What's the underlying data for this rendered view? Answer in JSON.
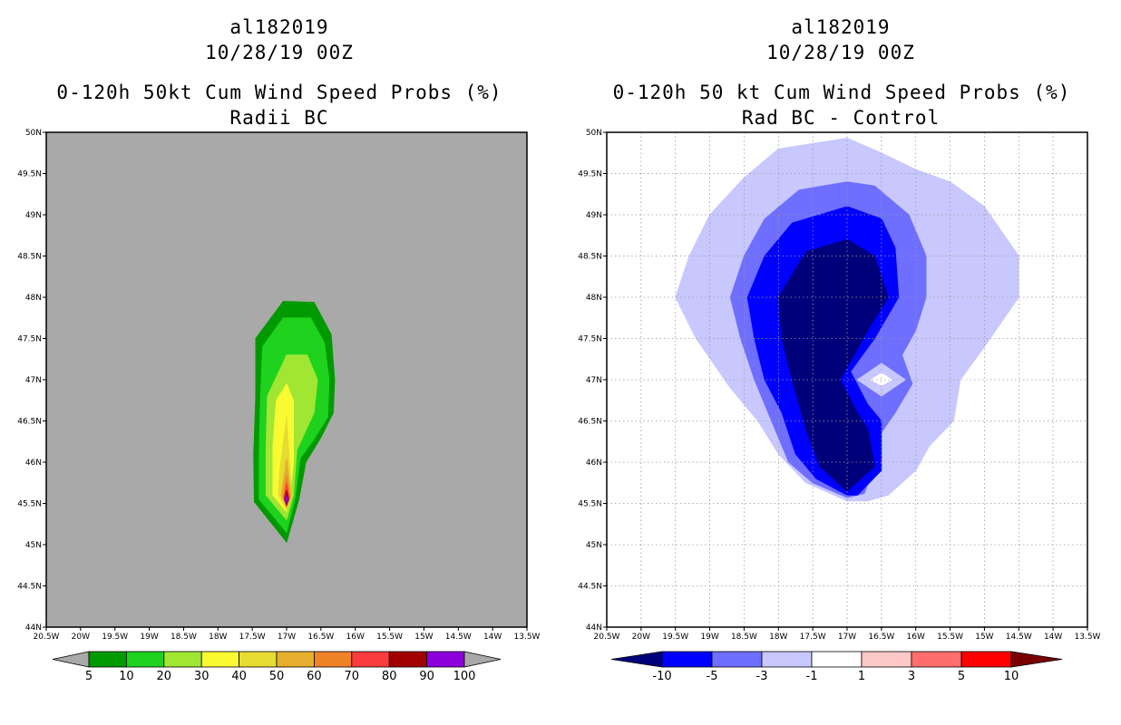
{
  "chart_data": [
    {
      "type": "filled-contour",
      "title": [
        "al182019",
        "10/28/19 00Z",
        "0-120h 50kt Cum Wind Speed Probs (%)",
        "Radii BC"
      ],
      "background_color": "#a9a9a9",
      "xlim": [
        -20.5,
        -13.5
      ],
      "ylim": [
        44,
        50
      ],
      "x_tick_labels": [
        "20.5W",
        "20W",
        "19.5W",
        "19W",
        "18.5W",
        "18W",
        "17.5W",
        "17W",
        "16.5W",
        "16W",
        "15.5W",
        "15W",
        "14.5W",
        "14W",
        "13.5W"
      ],
      "y_tick_labels": [
        "44N",
        "44.5N",
        "45N",
        "45.5N",
        "46N",
        "46.5N",
        "47N",
        "47.5N",
        "48N",
        "48.5N",
        "49N",
        "49.5N",
        "50N"
      ],
      "grid": false,
      "colorbar": {
        "levels": [
          "5",
          "10",
          "20",
          "30",
          "40",
          "50",
          "60",
          "70",
          "80",
          "90",
          "100"
        ],
        "colors": [
          "#009a00",
          "#1ed21e",
          "#a0e632",
          "#fafa32",
          "#e6dc32",
          "#e6af2d",
          "#f08228",
          "#fa3c3c",
          "#a00000",
          "#8c00dc"
        ],
        "arrow_color": "#a9a9a9"
      },
      "contours": [
        {
          "level": 5,
          "color": "#009a00",
          "points": [
            [
              -17.05,
              47.95
            ],
            [
              -16.6,
              47.94
            ],
            [
              -16.35,
              47.55
            ],
            [
              -16.3,
              47.0
            ],
            [
              -16.32,
              46.6
            ],
            [
              -16.5,
              46.3
            ],
            [
              -16.72,
              46.0
            ],
            [
              -16.82,
              45.55
            ],
            [
              -17.0,
              45.03
            ],
            [
              -17.47,
              45.52
            ],
            [
              -17.48,
              46.1
            ],
            [
              -17.45,
              46.8
            ],
            [
              -17.45,
              47.5
            ]
          ]
        },
        {
          "level": 10,
          "color": "#1ed21e",
          "points": [
            [
              -17.05,
              47.75
            ],
            [
              -16.65,
              47.75
            ],
            [
              -16.45,
              47.45
            ],
            [
              -16.38,
              47.0
            ],
            [
              -16.4,
              46.55
            ],
            [
              -16.6,
              46.28
            ],
            [
              -16.8,
              46.05
            ],
            [
              -16.88,
              45.55
            ],
            [
              -17.0,
              45.15
            ],
            [
              -17.4,
              45.55
            ],
            [
              -17.4,
              46.1
            ],
            [
              -17.38,
              46.8
            ],
            [
              -17.35,
              47.4
            ]
          ]
        },
        {
          "level": 20,
          "color": "#a0e632",
          "points": [
            [
              -17.0,
              47.3
            ],
            [
              -16.7,
              47.3
            ],
            [
              -16.55,
              47.0
            ],
            [
              -16.6,
              46.6
            ],
            [
              -16.85,
              46.15
            ],
            [
              -16.9,
              45.6
            ],
            [
              -17.0,
              45.3
            ],
            [
              -17.3,
              45.6
            ],
            [
              -17.3,
              46.2
            ],
            [
              -17.28,
              46.8
            ]
          ]
        },
        {
          "level": 30,
          "color": "#fafa32",
          "points": [
            [
              -17.0,
              46.95
            ],
            [
              -16.9,
              46.75
            ],
            [
              -16.9,
              46.0
            ],
            [
              -16.95,
              45.6
            ],
            [
              -17.0,
              45.4
            ],
            [
              -17.2,
              45.6
            ],
            [
              -17.2,
              46.2
            ],
            [
              -17.15,
              46.75
            ]
          ]
        },
        {
          "level": 40,
          "color": "#e6dc32",
          "points": [
            [
              -17.0,
              46.55
            ],
            [
              -16.95,
              45.9
            ],
            [
              -16.92,
              45.6
            ],
            [
              -17.0,
              45.42
            ],
            [
              -17.12,
              45.6
            ],
            [
              -17.1,
              45.9
            ]
          ]
        },
        {
          "level": 50,
          "color": "#e6af2d",
          "points": [
            [
              -17.0,
              46.05
            ],
            [
              -16.93,
              45.6
            ],
            [
              -17.0,
              45.45
            ],
            [
              -17.08,
              45.6
            ]
          ]
        },
        {
          "level": 60,
          "color": "#f08228",
          "points": [
            [
              -17.0,
              45.85
            ],
            [
              -16.95,
              45.58
            ],
            [
              -17.0,
              45.46
            ],
            [
              -17.05,
              45.58
            ]
          ]
        },
        {
          "level": 70,
          "color": "#fa3c3c",
          "points": [
            [
              -17.0,
              45.74
            ],
            [
              -16.96,
              45.56
            ],
            [
              -17.0,
              45.47
            ],
            [
              -17.04,
              45.56
            ]
          ]
        },
        {
          "level": 80,
          "color": "#a00000",
          "points": [
            [
              -17.0,
              45.66
            ],
            [
              -16.97,
              45.55
            ],
            [
              -17.0,
              45.48
            ],
            [
              -17.03,
              45.55
            ]
          ]
        },
        {
          "level": 90,
          "color": "#8c00dc",
          "points": [
            [
              -17.0,
              45.6
            ],
            [
              -16.98,
              45.55
            ],
            [
              -17.0,
              45.5
            ],
            [
              -17.02,
              45.55
            ]
          ]
        }
      ]
    },
    {
      "type": "filled-contour",
      "title": [
        "al182019",
        "10/28/19 00Z",
        "0-120h 50 kt Cum Wind Speed Probs (%)",
        "Rad BC - Control"
      ],
      "background_color": "#ffffff",
      "xlim": [
        -20.5,
        -13.5
      ],
      "ylim": [
        44,
        50
      ],
      "x_tick_labels": [
        "20.5W",
        "20W",
        "19.5W",
        "19W",
        "18.5W",
        "18W",
        "17.5W",
        "17W",
        "16.5W",
        "16W",
        "15.5W",
        "15W",
        "14.5W",
        "14W",
        "13.5W"
      ],
      "y_tick_labels": [
        "44N",
        "44.5N",
        "45N",
        "45.5N",
        "46N",
        "46.5N",
        "47N",
        "47.5N",
        "48N",
        "48.5N",
        "49N",
        "49.5N",
        "50N"
      ],
      "grid": true,
      "colorbar": {
        "levels": [
          "-10",
          "-5",
          "-3",
          "-1",
          "1",
          "3",
          "5",
          "10"
        ],
        "colors": [
          "#0000ff",
          "#6e6eff",
          "#c8c8ff",
          "#ffffff",
          "#ffc8c8",
          "#ff6e6e",
          "#ff0000"
        ],
        "arrow_colors": [
          "#00007a",
          "#7a0000"
        ]
      },
      "contours": [
        {
          "level": -1,
          "color": "#c8c8ff",
          "points": [
            [
              -17.0,
              49.93
            ],
            [
              -16.5,
              49.75
            ],
            [
              -16.0,
              49.55
            ],
            [
              -15.5,
              49.4
            ],
            [
              -15.0,
              49.1
            ],
            [
              -14.5,
              48.5
            ],
            [
              -14.5,
              48.0
            ],
            [
              -15.0,
              47.4
            ],
            [
              -15.35,
              47.0
            ],
            [
              -15.45,
              46.5
            ],
            [
              -15.8,
              46.2
            ],
            [
              -16.0,
              45.9
            ],
            [
              -16.4,
              45.6
            ],
            [
              -16.7,
              45.53
            ],
            [
              -17.0,
              45.53
            ],
            [
              -17.6,
              45.75
            ],
            [
              -18.0,
              46.1
            ],
            [
              -18.3,
              46.5
            ],
            [
              -18.7,
              46.9
            ],
            [
              -19.2,
              47.5
            ],
            [
              -19.5,
              48.0
            ],
            [
              -19.3,
              48.5
            ],
            [
              -19.0,
              49.0
            ],
            [
              -18.5,
              49.45
            ],
            [
              -18.0,
              49.8
            ]
          ]
        },
        {
          "level": -3,
          "color": "#6e6eff",
          "points": [
            [
              -17.0,
              49.4
            ],
            [
              -16.6,
              49.35
            ],
            [
              -16.1,
              49.0
            ],
            [
              -15.85,
              48.5
            ],
            [
              -15.85,
              48.0
            ],
            [
              -16.0,
              47.6
            ],
            [
              -16.2,
              47.3
            ],
            [
              -16.05,
              46.95
            ],
            [
              -16.3,
              46.6
            ],
            [
              -16.55,
              46.3
            ],
            [
              -16.6,
              45.95
            ],
            [
              -16.75,
              45.62
            ],
            [
              -17.0,
              45.57
            ],
            [
              -17.5,
              45.75
            ],
            [
              -17.85,
              46.0
            ],
            [
              -18.1,
              46.5
            ],
            [
              -18.35,
              47.0
            ],
            [
              -18.55,
              47.5
            ],
            [
              -18.7,
              48.0
            ],
            [
              -18.5,
              48.5
            ],
            [
              -18.2,
              48.95
            ],
            [
              -17.7,
              49.3
            ]
          ]
        },
        {
          "level": -5,
          "color": "#0000ff",
          "points": [
            [
              -17.0,
              49.1
            ],
            [
              -16.5,
              48.95
            ],
            [
              -16.3,
              48.6
            ],
            [
              -16.25,
              48.0
            ],
            [
              -16.6,
              47.5
            ],
            [
              -16.95,
              47.1
            ],
            [
              -16.7,
              46.7
            ],
            [
              -16.5,
              46.5
            ],
            [
              -16.5,
              45.9
            ],
            [
              -16.85,
              45.6
            ],
            [
              -17.0,
              45.6
            ],
            [
              -17.45,
              45.8
            ],
            [
              -17.75,
              46.1
            ],
            [
              -17.95,
              46.6
            ],
            [
              -18.2,
              47.0
            ],
            [
              -18.35,
              47.5
            ],
            [
              -18.45,
              48.0
            ],
            [
              -18.2,
              48.5
            ],
            [
              -17.8,
              48.9
            ]
          ]
        },
        {
          "level": -10,
          "color": "#00007a",
          "points": [
            [
              -17.0,
              48.7
            ],
            [
              -16.6,
              48.5
            ],
            [
              -16.4,
              48.0
            ],
            [
              -16.7,
              47.6
            ],
            [
              -17.1,
              47.0
            ],
            [
              -16.85,
              46.6
            ],
            [
              -16.7,
              46.4
            ],
            [
              -16.6,
              45.95
            ],
            [
              -17.0,
              45.65
            ],
            [
              -17.4,
              45.95
            ],
            [
              -17.6,
              46.4
            ],
            [
              -17.8,
              47.0
            ],
            [
              -17.95,
              47.5
            ],
            [
              -18.0,
              48.0
            ],
            [
              -17.6,
              48.55
            ]
          ]
        },
        {
          "level": 1,
          "color": "#c8c8ff",
          "points": [
            [
              -16.5,
              47.2
            ],
            [
              -16.15,
              47.0
            ],
            [
              -16.5,
              46.8
            ],
            [
              -16.85,
              47.0
            ]
          ]
        },
        {
          "level": 1,
          "color": "#ffffff",
          "points": [
            [
              -16.5,
              47.08
            ],
            [
              -16.35,
              47.0
            ],
            [
              -16.5,
              46.93
            ],
            [
              -16.65,
              47.0
            ]
          ]
        }
      ]
    }
  ]
}
